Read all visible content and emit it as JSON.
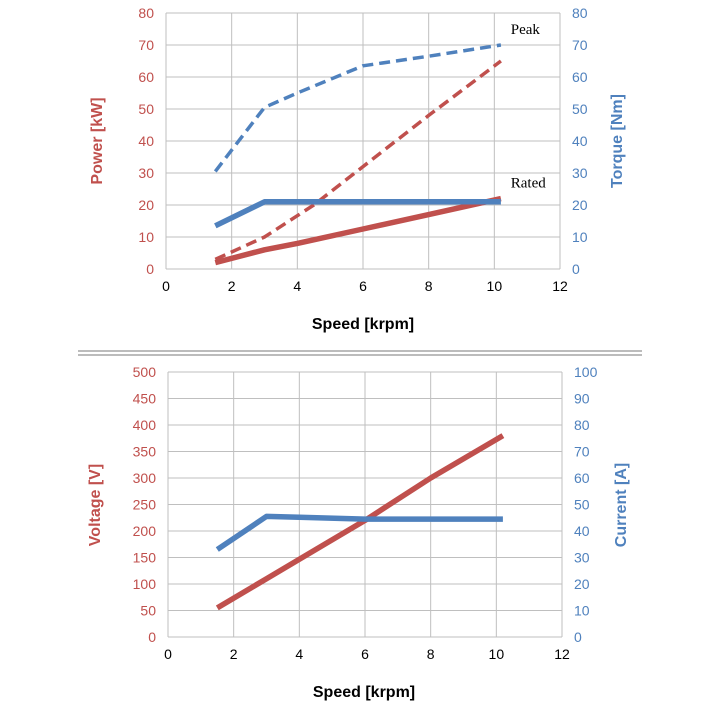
{
  "colors": {
    "red": "#C0504D",
    "blue": "#4F81BD",
    "grid": "#BFBFBF",
    "text": "#000000"
  },
  "chart_data": [
    {
      "type": "line",
      "title": "",
      "xlabel": "Speed [krpm]",
      "ylabel_left": "Power [kW]",
      "ylabel_right": "Torque [Nm]",
      "xlim": [
        0,
        12
      ],
      "xticks": [
        "0",
        "2",
        "4",
        "6",
        "8",
        "10",
        "12"
      ],
      "ylim_left": [
        0,
        80
      ],
      "yticks_left": [
        "0",
        "10",
        "20",
        "30",
        "40",
        "50",
        "60",
        "70",
        "80"
      ],
      "ylim_right": [
        0,
        80
      ],
      "yticks_right": [
        "0",
        "10",
        "20",
        "30",
        "40",
        "50",
        "60",
        "70",
        "80"
      ],
      "grid": true,
      "annotations": [
        {
          "text": "Peak",
          "x": 10.5,
          "y": 73.5
        },
        {
          "text": "Rated",
          "x": 10.5,
          "y": 25.5
        }
      ],
      "series": [
        {
          "axis": "left",
          "style": "dashed",
          "color": "#C0504D",
          "x": [
            1.5,
            3,
            4.5,
            6,
            8,
            10.2
          ],
          "y": [
            3,
            10,
            20,
            32,
            48,
            65
          ]
        },
        {
          "axis": "left",
          "style": "solid",
          "color": "#C0504D",
          "x": [
            1.5,
            3,
            4,
            6,
            8,
            10.2
          ],
          "y": [
            2,
            6,
            8,
            12.5,
            17,
            22
          ]
        },
        {
          "axis": "right",
          "style": "dashed",
          "color": "#4F81BD",
          "x": [
            1.5,
            3,
            4,
            6,
            8,
            10.2
          ],
          "y": [
            30.5,
            50.5,
            55,
            63.5,
            66.5,
            70
          ]
        },
        {
          "axis": "right",
          "style": "solid",
          "color": "#4F81BD",
          "x": [
            1.5,
            3,
            4,
            6,
            8,
            10.2
          ],
          "y": [
            13.5,
            21,
            21,
            21,
            21,
            21
          ]
        }
      ]
    },
    {
      "type": "line",
      "title": "",
      "xlabel": "Speed [krpm]",
      "ylabel_left": "Voltage [V]",
      "ylabel_right": "Current [A]",
      "xlim": [
        0,
        12
      ],
      "xticks": [
        "0",
        "2",
        "4",
        "6",
        "8",
        "10",
        "12"
      ],
      "ylim_left": [
        0,
        500
      ],
      "yticks_left": [
        "0",
        "50",
        "100",
        "150",
        "200",
        "250",
        "300",
        "350",
        "400",
        "450",
        "500"
      ],
      "ylim_right": [
        0,
        100
      ],
      "yticks_right": [
        "0",
        "10",
        "20",
        "30",
        "40",
        "50",
        "60",
        "70",
        "80",
        "90",
        "100"
      ],
      "grid": true,
      "annotations": [],
      "series": [
        {
          "axis": "left",
          "style": "solid",
          "color": "#C0504D",
          "x": [
            1.5,
            3,
            4.5,
            6,
            8,
            10.2
          ],
          "y": [
            55,
            110,
            165,
            220,
            300,
            380
          ]
        },
        {
          "axis": "right",
          "style": "solid",
          "color": "#4F81BD",
          "x": [
            1.5,
            3,
            4,
            6,
            8,
            10.2
          ],
          "y": [
            33,
            45.5,
            45.2,
            44.5,
            44.5,
            44.5
          ]
        }
      ]
    }
  ]
}
